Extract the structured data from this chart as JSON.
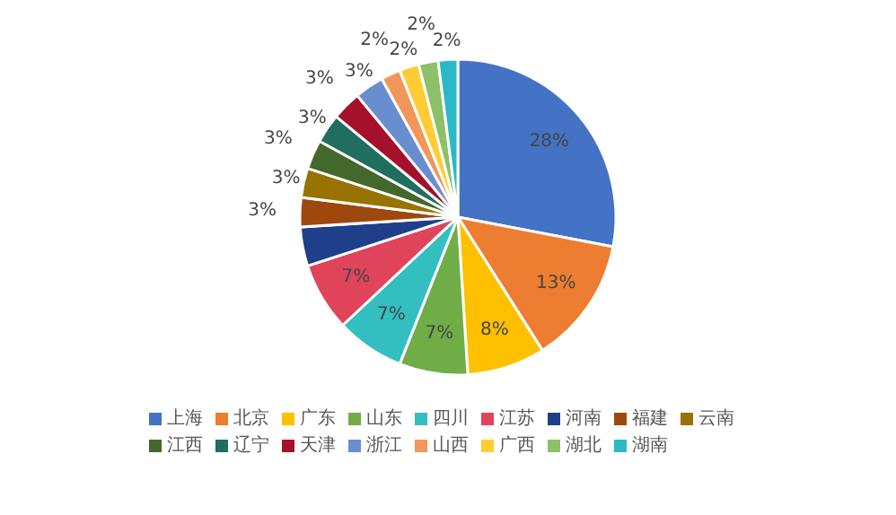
{
  "chart_data": {
    "type": "pie",
    "categories": [
      "上海",
      "北京",
      "广东",
      "山东",
      "四川",
      "江苏",
      "河南",
      "福建",
      "云南",
      "江西",
      "辽宁",
      "天津",
      "浙江",
      "山西",
      "广西",
      "湖北",
      "湖南"
    ],
    "values": [
      28,
      13,
      8,
      7,
      7,
      7,
      4,
      3,
      3,
      3,
      3,
      3,
      3,
      2,
      2,
      2,
      2
    ],
    "colors": [
      "#4472c4",
      "#ed7d31",
      "#ffc000",
      "#70ad47",
      "#33bfbf",
      "#e0445a",
      "#203f8a",
      "#9e480e",
      "#997300",
      "#43682b",
      "#1f6e60",
      "#a5102a",
      "#698ed0",
      "#f1975a",
      "#ffcd33",
      "#8cc168",
      "#2bb9c6"
    ],
    "value_labels": [
      "28%",
      "13%",
      "8%",
      "7%",
      "7%",
      "7%",
      null,
      "3%",
      "3%",
      "3%",
      "3%",
      "3%",
      "3%",
      "2%",
      "2%",
      "2%",
      "2%"
    ],
    "legend": "bottom"
  }
}
